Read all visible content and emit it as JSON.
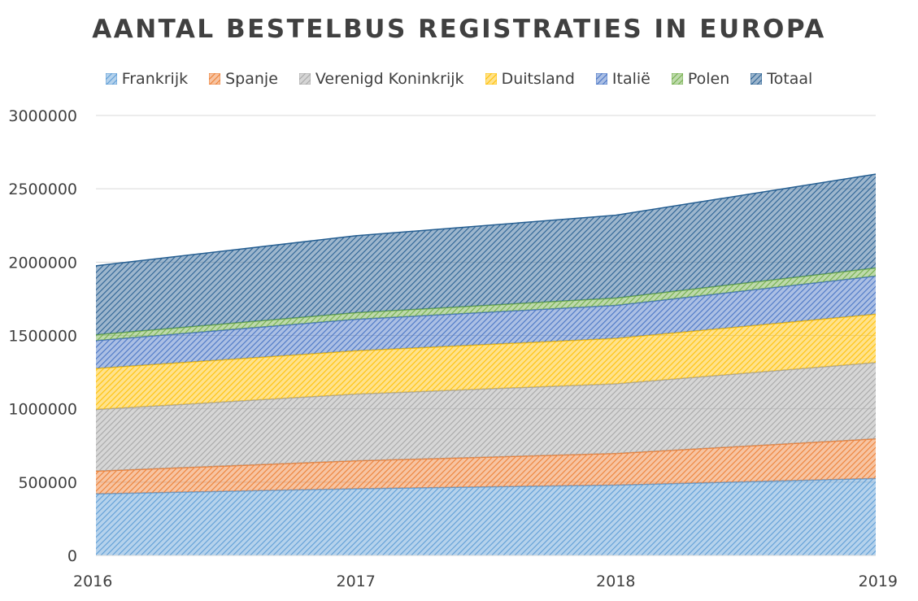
{
  "chart_data": {
    "type": "area",
    "stacked": true,
    "title": "AANTAL BESTELBUS REGISTRATIES IN EUROPA",
    "xlabel": "",
    "ylabel": "",
    "categories": [
      "2016",
      "2017",
      "2018",
      "2019"
    ],
    "ylim": [
      0,
      3000000
    ],
    "yticks": [
      "0",
      "500000",
      "1000000",
      "1500000",
      "2000000",
      "2500000",
      "3000000"
    ],
    "grid": true,
    "legend_position": "top",
    "series": [
      {
        "name": "Frankrijk",
        "color": "#5B9BD5",
        "values": [
          420000,
          455000,
          480000,
          525000
        ]
      },
      {
        "name": "Spanje",
        "color": "#ED7D31",
        "values": [
          155000,
          190000,
          215000,
          270000
        ]
      },
      {
        "name": "Verenigd Koninkrijk",
        "color": "#A5A5A5",
        "values": [
          420000,
          455000,
          475000,
          520000
        ]
      },
      {
        "name": "Duitsland",
        "color": "#FFC000",
        "values": [
          280000,
          295000,
          310000,
          330000
        ]
      },
      {
        "name": "Italië",
        "color": "#4472C4",
        "values": [
          190000,
          215000,
          225000,
          260000
        ]
      },
      {
        "name": "Polen",
        "color": "#70AD47",
        "values": [
          40000,
          45000,
          50000,
          55000
        ]
      },
      {
        "name": "Totaal",
        "color": "#255E91",
        "values": [
          470000,
          525000,
          565000,
          640000
        ]
      }
    ]
  }
}
